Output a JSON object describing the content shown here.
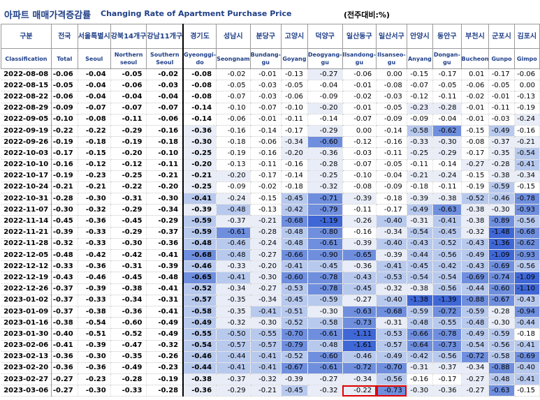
{
  "title": {
    "korean": "아파트 매매가격증감률",
    "english": "Changing Rate of Apartment Purchase Price",
    "unit": "(전주대비:%)"
  },
  "headers": {
    "korean": [
      "구분",
      "전국",
      "서울특별시",
      "강북14개구",
      "강남11개구",
      "경기도",
      "성남시",
      "분당구",
      "고양시",
      "덕양구",
      "일산동구",
      "일산서구",
      "안양시",
      "동안구",
      "부천시",
      "군포시",
      "김포시"
    ],
    "english": [
      "Classification",
      "Total",
      "Seoul",
      "Northern seoul",
      "Southern Seoul",
      "Gyeonggi-do",
      "Seongnam",
      "Bundang-gu",
      "Goyang",
      "Deogyang-gu",
      "Ilsandong-gu",
      "Ilsanseo-gu",
      "Anyang",
      "Dongan-gu",
      "Bucheon",
      "Gunpo",
      "Gimpo"
    ]
  },
  "rows": [
    {
      "date": "2022-08-08",
      "values": [
        "-0.06",
        "-0.04",
        "-0.05",
        "-0.02",
        "-0.08",
        "-0.02",
        "-0.01",
        "-0.13",
        "-0.27",
        "-0.06",
        "0.00",
        "-0.15",
        "-0.17",
        "0.01",
        "-0.17",
        "-0.06"
      ]
    },
    {
      "date": "2022-08-15",
      "values": [
        "-0.05",
        "-0.04",
        "-0.06",
        "-0.03",
        "-0.08",
        "-0.05",
        "-0.03",
        "-0.05",
        "-0.04",
        "-0.01",
        "-0.08",
        "-0.07",
        "-0.05",
        "-0.06",
        "-0.05",
        "0.00"
      ]
    },
    {
      "date": "2022-08-22",
      "values": [
        "-0.06",
        "-0.04",
        "-0.04",
        "-0.04",
        "-0.08",
        "-0.07",
        "-0.03",
        "-0.06",
        "-0.09",
        "-0.02",
        "-0.03",
        "-0.12",
        "-0.11",
        "-0.02",
        "-0.01",
        "-0.13"
      ]
    },
    {
      "date": "2022-08-29",
      "values": [
        "-0.09",
        "-0.07",
        "-0.07",
        "-0.07",
        "-0.14",
        "-0.10",
        "-0.07",
        "-0.10",
        "-0.20",
        "-0.01",
        "-0.05",
        "-0.23",
        "-0.28",
        "-0.01",
        "-0.11",
        "-0.19"
      ]
    },
    {
      "date": "2022-09-05",
      "values": [
        "-0.10",
        "-0.08",
        "-0.11",
        "-0.06",
        "-0.14",
        "-0.06",
        "-0.01",
        "-0.11",
        "-0.14",
        "-0.07",
        "-0.09",
        "-0.09",
        "-0.04",
        "-0.01",
        "-0.03",
        "-0.24"
      ]
    },
    {
      "date": "2022-09-19",
      "values": [
        "-0.22",
        "-0.22",
        "-0.29",
        "-0.16",
        "-0.36",
        "-0.16",
        "-0.14",
        "-0.17",
        "-0.29",
        "0.00",
        "-0.14",
        "-0.58",
        "-0.62",
        "-0.15",
        "-0.49",
        "-0.16"
      ]
    },
    {
      "date": "2022-09-26",
      "values": [
        "-0.19",
        "-0.18",
        "-0.19",
        "-0.18",
        "-0.30",
        "-0.18",
        "-0.06",
        "-0.34",
        "-0.60",
        "-0.12",
        "-0.16",
        "-0.33",
        "-0.30",
        "-0.08",
        "-0.37",
        "-0.21"
      ]
    },
    {
      "date": "2022-10-03",
      "values": [
        "-0.17",
        "-0.15",
        "-0.20",
        "-0.10",
        "-0.25",
        "-0.19",
        "-0.16",
        "-0.20",
        "-0.36",
        "-0.03",
        "-0.11",
        "-0.25",
        "-0.29",
        "-0.17",
        "-0.35",
        "-0.54"
      ]
    },
    {
      "date": "2022-10-10",
      "values": [
        "-0.16",
        "-0.12",
        "-0.12",
        "-0.11",
        "-0.20",
        "-0.13",
        "-0.11",
        "-0.16",
        "-0.28",
        "-0.07",
        "-0.05",
        "-0.11",
        "-0.14",
        "-0.27",
        "-0.28",
        "-0.41"
      ]
    },
    {
      "date": "2022-10-17",
      "values": [
        "-0.19",
        "-0.23",
        "-0.25",
        "-0.21",
        "-0.21",
        "-0.20",
        "-0.17",
        "-0.14",
        "-0.25",
        "-0.10",
        "-0.04",
        "-0.21",
        "-0.24",
        "-0.15",
        "-0.38",
        "-0.34"
      ]
    },
    {
      "date": "2022-10-24",
      "values": [
        "-0.21",
        "-0.21",
        "-0.22",
        "-0.20",
        "-0.25",
        "-0.09",
        "-0.02",
        "-0.18",
        "-0.32",
        "-0.08",
        "-0.09",
        "-0.18",
        "-0.11",
        "-0.19",
        "-0.59",
        "-0.15"
      ]
    },
    {
      "date": "2022-10-31",
      "values": [
        "-0.28",
        "-0.30",
        "-0.31",
        "-0.30",
        "-0.41",
        "-0.24",
        "-0.15",
        "-0.45",
        "-0.71",
        "-0.39",
        "-0.18",
        "-0.39",
        "-0.38",
        "-0.52",
        "-0.46",
        "-0.78"
      ]
    },
    {
      "date": "2022-11-07",
      "values": [
        "-0.30",
        "-0.32",
        "-0.29",
        "-0.34",
        "-0.39",
        "-0.48",
        "-0.13",
        "-0.42",
        "-0.79",
        "-0.11",
        "-0.17",
        "-0.49",
        "-0.63",
        "-0.38",
        "-0.30",
        "-0.93"
      ]
    },
    {
      "date": "2022-11-14",
      "values": [
        "-0.45",
        "-0.36",
        "-0.45",
        "-0.29",
        "-0.59",
        "-0.37",
        "-0.21",
        "-0.68",
        "-1.19",
        "-0.26",
        "-0.40",
        "-0.31",
        "-0.41",
        "-0.38",
        "-0.89",
        "-0.56"
      ]
    },
    {
      "date": "2022-11-21",
      "values": [
        "-0.39",
        "-0.33",
        "-0.29",
        "-0.37",
        "-0.59",
        "-0.61",
        "-0.28",
        "-0.48",
        "-0.80",
        "-0.16",
        "-0.34",
        "-0.54",
        "-0.45",
        "-0.32",
        "-1.48",
        "-0.68"
      ]
    },
    {
      "date": "2022-11-28",
      "values": [
        "-0.32",
        "-0.33",
        "-0.30",
        "-0.36",
        "-0.48",
        "-0.46",
        "-0.24",
        "-0.48",
        "-0.61",
        "-0.39",
        "-0.40",
        "-0.43",
        "-0.52",
        "-0.43",
        "-1.36",
        "-0.62"
      ]
    },
    {
      "date": "2022-12-05",
      "values": [
        "-0.48",
        "-0.42",
        "-0.42",
        "-0.41",
        "-0.68",
        "-0.48",
        "-0.27",
        "-0.66",
        "-0.90",
        "-0.65",
        "-0.39",
        "-0.44",
        "-0.56",
        "-0.49",
        "-1.09",
        "-0.93"
      ]
    },
    {
      "date": "2022-12-12",
      "values": [
        "-0.33",
        "-0.36",
        "-0.31",
        "-0.39",
        "-0.46",
        "-0.33",
        "-0.20",
        "-0.41",
        "-0.45",
        "-0.36",
        "-0.41",
        "-0.45",
        "-0.42",
        "-0.43",
        "-0.69",
        "-0.56"
      ]
    },
    {
      "date": "2022-12-19",
      "values": [
        "-0.43",
        "-0.46",
        "-0.45",
        "-0.48",
        "-0.65",
        "-0.41",
        "-0.30",
        "-0.60",
        "-0.78",
        "-0.43",
        "-0.53",
        "-0.54",
        "-0.54",
        "-0.69",
        "-0.74",
        "-1.09"
      ]
    },
    {
      "date": "2022-12-26",
      "values": [
        "-0.37",
        "-0.39",
        "-0.38",
        "-0.41",
        "-0.52",
        "-0.34",
        "-0.27",
        "-0.53",
        "-0.78",
        "-0.45",
        "-0.32",
        "-0.38",
        "-0.56",
        "-0.44",
        "-0.60",
        "-1.10"
      ]
    },
    {
      "date": "2023-01-02",
      "values": [
        "-0.37",
        "-0.33",
        "-0.34",
        "-0.31",
        "-0.57",
        "-0.35",
        "-0.34",
        "-0.45",
        "-0.59",
        "-0.27",
        "-0.40",
        "-1.38",
        "-1.39",
        "-0.88",
        "-0.67",
        "-0.43"
      ]
    },
    {
      "date": "2023-01-09",
      "values": [
        "-0.37",
        "-0.38",
        "-0.36",
        "-0.41",
        "-0.58",
        "-0.35",
        "-0.41",
        "-0.51",
        "-0.30",
        "-0.63",
        "-0.68",
        "-0.59",
        "-0.72",
        "-0.59",
        "-0.28",
        "-0.94"
      ]
    },
    {
      "date": "2023-01-16",
      "values": [
        "-0.38",
        "-0.54",
        "-0.60",
        "-0.49",
        "-0.49",
        "-0.32",
        "-0.30",
        "-0.52",
        "-0.58",
        "-0.73",
        "-0.31",
        "-0.48",
        "-0.55",
        "-0.48",
        "-0.30",
        "-0.44"
      ]
    },
    {
      "date": "2023-01-30",
      "values": [
        "-0.40",
        "-0.51",
        "-0.52",
        "-0.49",
        "-0.55",
        "-0.50",
        "-0.55",
        "-0.70",
        "-0.61",
        "-1.11",
        "-0.53",
        "-0.66",
        "-0.78",
        "-0.49",
        "-0.59",
        "-0.18"
      ]
    },
    {
      "date": "2023-02-06",
      "values": [
        "-0.41",
        "-0.39",
        "-0.47",
        "-0.32",
        "-0.54",
        "-0.57",
        "-0.57",
        "-0.79",
        "-0.48",
        "-1.61",
        "-0.57",
        "-0.64",
        "-0.73",
        "-0.54",
        "-0.56",
        "-0.41"
      ]
    },
    {
      "date": "2023-02-13",
      "values": [
        "-0.36",
        "-0.30",
        "-0.35",
        "-0.26",
        "-0.46",
        "-0.44",
        "-0.41",
        "-0.52",
        "-0.60",
        "-0.46",
        "-0.49",
        "-0.42",
        "-0.56",
        "-0.72",
        "-0.58",
        "-0.69"
      ]
    },
    {
      "date": "2023-02-20",
      "values": [
        "-0.36",
        "-0.36",
        "-0.49",
        "-0.23",
        "-0.44",
        "-0.41",
        "-0.41",
        "-0.67",
        "-0.61",
        "-0.72",
        "-0.70",
        "-0.31",
        "-0.37",
        "-0.34",
        "-0.88",
        "-0.40"
      ]
    },
    {
      "date": "2023-02-27",
      "values": [
        "-0.27",
        "-0.23",
        "-0.28",
        "-0.19",
        "-0.38",
        "-0.37",
        "-0.32",
        "-0.39",
        "-0.27",
        "-0.34",
        "-0.56",
        "-0.16",
        "-0.17",
        "-0.27",
        "-0.48",
        "-0.41"
      ]
    },
    {
      "date": "2023-03-06",
      "values": [
        "-0.27",
        "-0.30",
        "-0.33",
        "-0.28",
        "-0.36",
        "-0.29",
        "-0.21",
        "-0.45",
        "-0.32",
        "-0.22",
        "-0.73",
        "-0.30",
        "-0.36",
        "-0.27",
        "-0.63",
        "-0.15"
      ]
    }
  ],
  "highlight": {
    "row": "2023-03-06",
    "columns": [
      10,
      11
    ],
    "color": "#e00000"
  },
  "scale_colors": {
    "light": "#e8edf8",
    "mid": "#b8c9ee",
    "dark": "#6f8fde",
    "darkest": "#3f67d6"
  }
}
